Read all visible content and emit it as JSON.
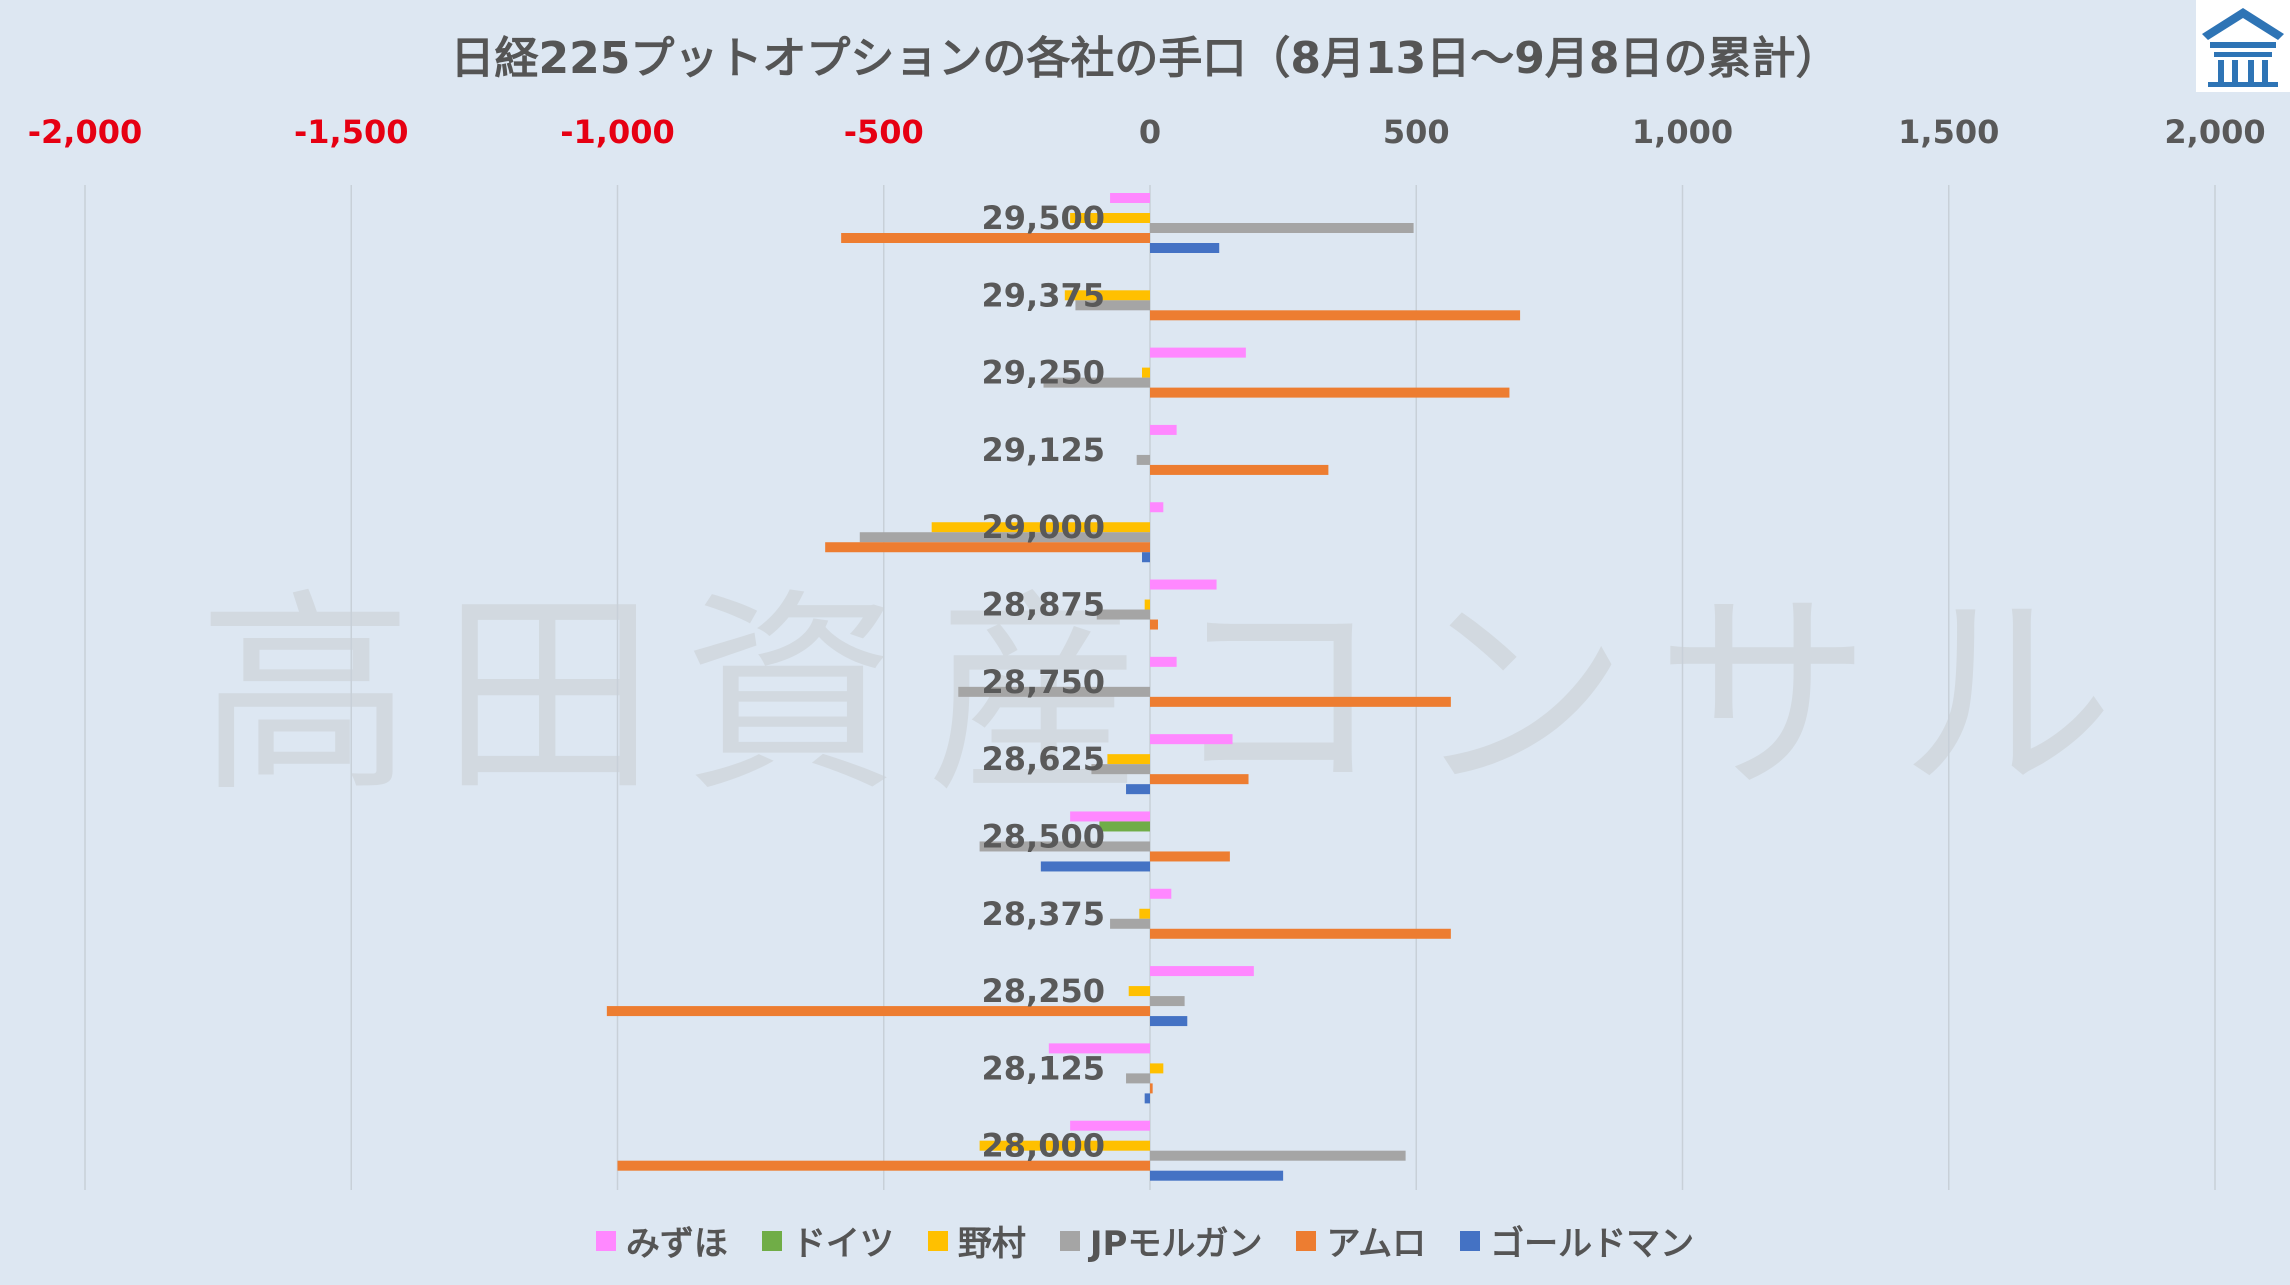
{
  "title": "日経225プットオプションの各社の手口（8月13日～9月8日の累計）",
  "watermark": "高田資産コンサル",
  "chart_data": {
    "type": "bar",
    "orientation": "horizontal",
    "x_ticks": [
      "-2,000",
      "-1,500",
      "-1,000",
      "-500",
      "0",
      "500",
      "1,000",
      "1,500",
      "2,000"
    ],
    "x_tick_values": [
      -2000,
      -1500,
      -1000,
      -500,
      0,
      500,
      1000,
      1500,
      2000
    ],
    "xlim": [
      -2000,
      2000
    ],
    "negative_tick_color": "#e60012",
    "positive_tick_color": "#595959",
    "grid": true,
    "legend_position": "bottom",
    "categories": [
      "29,500",
      "29,375",
      "29,250",
      "29,125",
      "29,000",
      "28,875",
      "28,750",
      "28,625",
      "28,500",
      "28,375",
      "28,250",
      "28,125",
      "28,000"
    ],
    "series": [
      {
        "name": "みずほ",
        "color": "#ff88ff",
        "values": [
          -75,
          0,
          180,
          50,
          25,
          125,
          50,
          155,
          -150,
          40,
          195,
          -190,
          -150
        ]
      },
      {
        "name": "ドイツ",
        "color": "#70ad47",
        "values": [
          0,
          0,
          0,
          0,
          0,
          0,
          0,
          0,
          -95,
          0,
          0,
          0,
          0
        ]
      },
      {
        "name": "野村",
        "color": "#ffc000",
        "values": [
          -150,
          -160,
          -15,
          0,
          -410,
          -10,
          0,
          -80,
          0,
          -20,
          -40,
          25,
          -320
        ]
      },
      {
        "name": "JPモルガン",
        "color": "#a5a5a5",
        "values": [
          495,
          -140,
          -200,
          -25,
          -545,
          -100,
          -360,
          -110,
          -320,
          -75,
          65,
          -45,
          480
        ]
      },
      {
        "name": "アムロ",
        "color": "#ed7d31",
        "values": [
          -580,
          695,
          675,
          335,
          -610,
          15,
          565,
          185,
          150,
          565,
          -1020,
          5,
          -1000
        ]
      },
      {
        "name": "ゴールドマン",
        "color": "#4472c4",
        "values": [
          130,
          0,
          0,
          0,
          -15,
          0,
          0,
          -45,
          -205,
          0,
          70,
          -10,
          250
        ]
      }
    ]
  }
}
